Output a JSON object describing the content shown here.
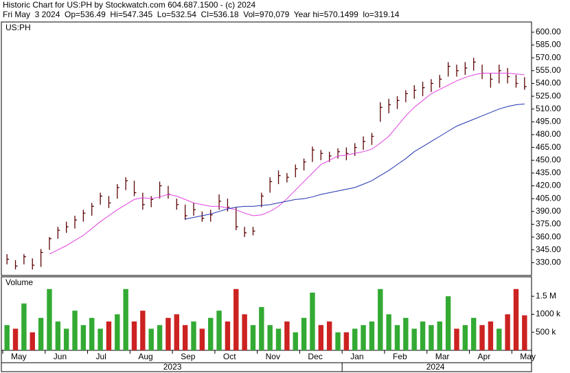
{
  "chart_data": {
    "type": "ohlc",
    "title": "Historic Chart for US:PH by Stockwatch.com 604.687.1500 - (c) 2024",
    "subtitle": "Fri May  3 2024  Op=536.49  Hi=547.345  Lo=532.54  Cl=536.18  Vol=970,079  Year hi=570.1499  lo=319.14",
    "symbol": "US:PH",
    "volume_label": "Volume",
    "bar_color": "#5a0000",
    "up_color": "#33aa33",
    "down_color": "#cc2222",
    "ma1_color": "#e040e0",
    "ma2_color": "#2030b0",
    "ylim": [
      315,
      612
    ],
    "yticks": [
      {
        "value": 330,
        "label": "330.00"
      },
      {
        "value": 345,
        "label": "345.00"
      },
      {
        "value": 360,
        "label": "360.00"
      },
      {
        "value": 375,
        "label": "375.00"
      },
      {
        "value": 390,
        "label": "390.00"
      },
      {
        "value": 405,
        "label": "405.00"
      },
      {
        "value": 420,
        "label": "420.00"
      },
      {
        "value": 435,
        "label": "435.00"
      },
      {
        "value": 450,
        "label": "450.00"
      },
      {
        "value": 465,
        "label": "465.00"
      },
      {
        "value": 480,
        "label": "480.00"
      },
      {
        "value": 495,
        "label": "495.00"
      },
      {
        "value": 510,
        "label": "510.00"
      },
      {
        "value": 525,
        "label": "525.00"
      },
      {
        "value": 540,
        "label": "540.00"
      },
      {
        "value": 555,
        "label": "555.00"
      },
      {
        "value": 570,
        "label": "570.00"
      },
      {
        "value": 585,
        "label": "585.00"
      },
      {
        "value": 600,
        "label": "600.00"
      }
    ],
    "vlim": [
      0,
      2000000
    ],
    "vticks": [
      {
        "value": 500000,
        "label": "500 k"
      },
      {
        "value": 1000000,
        "label": "1000 k"
      },
      {
        "value": 1500000,
        "label": "1.5 M"
      }
    ],
    "years": [
      {
        "label": "2023",
        "months": [
          {
            "label": "May",
            "bars": [
              [
                340,
                328,
                334
              ],
              [
                333,
                322,
                326
              ],
              [
                340,
                328,
                337
              ],
              [
                335,
                322,
                327
              ],
              [
                346,
                325,
                342
              ]
            ],
            "volume": [
              700000,
              600000,
              1300000,
              500000,
              900000
            ],
            "ma1": [
              null,
              null,
              null,
              null,
              null
            ],
            "ma2": [
              null,
              null,
              null,
              null,
              null
            ]
          },
          {
            "label": "Jun",
            "bars": [
              [
                360,
                345,
                358
              ],
              [
                372,
                358,
                368
              ],
              [
                378,
                365,
                372
              ],
              [
                385,
                370,
                380
              ],
              [
                392,
                378,
                388
              ]
            ],
            "volume": [
              1700000,
              800000,
              600000,
              1100000,
              700000
            ],
            "ma1": [
              340,
              345,
              350,
              356,
              362
            ],
            "ma2": [
              null,
              null,
              null,
              null,
              null
            ]
          },
          {
            "label": "Jul",
            "bars": [
              [
                400,
                385,
                396
              ],
              [
                412,
                398,
                408
              ],
              [
                408,
                394,
                400
              ],
              [
                422,
                405,
                418
              ],
              [
                430,
                415,
                426
              ]
            ],
            "volume": [
              900000,
              600000,
              800000,
              1000000,
              1700000
            ],
            "ma1": [
              370,
              378,
              385,
              392,
              398
            ],
            "ma2": [
              null,
              null,
              null,
              null,
              null
            ]
          },
          {
            "label": "Aug",
            "bars": [
              [
                426,
                408,
                412
              ],
              [
                412,
                392,
                398
              ],
              [
                408,
                395,
                404
              ],
              [
                425,
                405,
                420
              ],
              [
                420,
                405,
                410
              ]
            ],
            "volume": [
              800000,
              1100000,
              600000,
              700000,
              900000
            ],
            "ma1": [
              404,
              406,
              405,
              407,
              410
            ],
            "ma2": [
              null,
              null,
              null,
              null,
              null
            ]
          },
          {
            "label": "Sep",
            "bars": [
              [
                405,
                392,
                398
              ],
              [
                398,
                380,
                385
              ],
              [
                400,
                385,
                392
              ],
              [
                390,
                378,
                382
              ],
              [
                392,
                378,
                386
              ]
            ],
            "volume": [
              1000000,
              700000,
              800000,
              600000,
              900000
            ],
            "ma1": [
              408,
              404,
              400,
              398,
              396
            ],
            "ma2": [
              null,
              381,
              383,
              385,
              387
            ]
          },
          {
            "label": "Oct",
            "bars": [
              [
                410,
                392,
                402
              ],
              [
                405,
                390,
                395
              ],
              [
                395,
                368,
                372
              ],
              [
                372,
                360,
                365
              ],
              [
                372,
                362,
                367
              ]
            ],
            "volume": [
              1100000,
              800000,
              1700000,
              1000000,
              700000
            ],
            "ma1": [
              396,
              394,
              392,
              388,
              385
            ],
            "ma2": [
              390,
              393,
              395,
              396,
              396
            ]
          },
          {
            "label": "Nov",
            "bars": [
              [
                412,
                395,
                408
              ],
              [
                430,
                412,
                425
              ],
              [
                438,
                422,
                432
              ],
              [
                435,
                424,
                430
              ],
              [
                445,
                430,
                440
              ]
            ],
            "volume": [
              1200000,
              700000,
              600000,
              800000,
              500000
            ],
            "ma1": [
              386,
              390,
              396,
              405,
              415
            ],
            "ma2": [
              397,
              398,
              400,
              402,
              404
            ]
          },
          {
            "label": "Dec",
            "bars": [
              [
                452,
                438,
                448
              ],
              [
                466,
                448,
                462
              ],
              [
                462,
                450,
                458
              ],
              [
                460,
                448,
                455
              ],
              [
                464,
                452,
                460
              ]
            ],
            "volume": [
              900000,
              1600000,
              700000,
              800000,
              500000
            ],
            "ma1": [
              425,
              435,
              445,
              450,
              455
            ],
            "ma2": [
              405,
              407,
              410,
              412,
              414
            ]
          }
        ]
      },
      {
        "label": "2024",
        "months": [
          {
            "label": "Jan",
            "bars": [
              [
                465,
                450,
                458
              ],
              [
                470,
                455,
                465
              ],
              [
                478,
                462,
                472
              ],
              [
                482,
                468,
                478
              ],
              [
                518,
                495,
                512
              ]
            ],
            "volume": [
              500000,
              600000,
              700000,
              800000,
              1700000
            ],
            "ma1": [
              456,
              458,
              460,
              463,
              470
            ],
            "ma2": [
              416,
              418,
              422,
              426,
              432
            ]
          },
          {
            "label": "Feb",
            "bars": [
              [
                522,
                505,
                515
              ],
              [
                525,
                510,
                520
              ],
              [
                532,
                518,
                528
              ],
              [
                538,
                522,
                532
              ],
              [
                542,
                525,
                535
              ]
            ],
            "volume": [
              1000000,
              700000,
              900000,
              600000,
              800000
            ],
            "ma1": [
              478,
              490,
              502,
              512,
              520
            ],
            "ma2": [
              438,
              445,
              452,
              460,
              466
            ]
          },
          {
            "label": "Mar",
            "bars": [
              [
                545,
                530,
                540
              ],
              [
                550,
                535,
                545
              ],
              [
                565,
                548,
                560
              ],
              [
                562,
                548,
                555
              ],
              [
                565,
                550,
                558
              ]
            ],
            "volume": [
              700000,
              800000,
              1500000,
              600000,
              700000
            ],
            "ma1": [
              528,
              533,
              538,
              543,
              547
            ],
            "ma2": [
              472,
              478,
              484,
              490,
              494
            ]
          },
          {
            "label": "Apr",
            "bars": [
              [
                570,
                555,
                565
              ],
              [
                562,
                545,
                552
              ],
              [
                552,
                535,
                545
              ],
              [
                562,
                540,
                555
              ],
              [
                558,
                540,
                548
              ]
            ],
            "volume": [
              900000,
              700000,
              800000,
              600000,
              1000000
            ],
            "ma1": [
              550,
              552,
              552,
              552,
              552
            ],
            "ma2": [
              498,
              502,
              506,
              510,
              513
            ]
          },
          {
            "label": "May",
            "bars": [
              [
                550,
                535,
                540
              ],
              [
                547.345,
                532.54,
                536.18
              ]
            ],
            "volume": [
              1700000,
              970079
            ],
            "ma1": [
              551,
              550
            ],
            "ma2": [
              515,
              516
            ]
          }
        ]
      }
    ]
  }
}
